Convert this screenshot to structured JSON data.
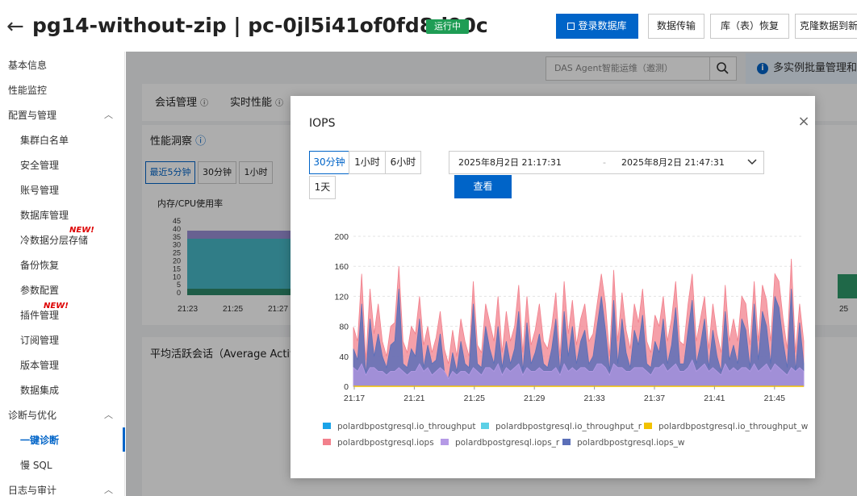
{
  "header": {
    "back_icon": "←",
    "title": "pg14-without-zip | pc-0jl5i41of0fd8d90c",
    "status": "运行中",
    "buttons": {
      "login_db": "登录数据库",
      "data_transfer": "数据传输",
      "restore": "库（表）恢复",
      "clone": "克隆数据到新"
    }
  },
  "sidebar": {
    "basic_info": "基本信息",
    "perf_monitor": "性能监控",
    "config_section": "配置与管理",
    "whitelist": "集群白名单",
    "security": "安全管理",
    "accounts": "账号管理",
    "databases": "数据库管理",
    "cold_storage": "冷数据分层存储",
    "backup": "备份恢复",
    "params": "参数配置",
    "plugins": "插件管理",
    "subscriptions": "订阅管理",
    "versions": "版本管理",
    "integration": "数据集成",
    "diag_section": "诊断与优化",
    "one_click": "一键诊断",
    "slow_sql": "慢 SQL",
    "log_section": "日志与审计",
    "new_badge": "NEW!"
  },
  "background": {
    "das_placeholder": "DAS Agent智能运维（邀测）",
    "info_text": "多实例批量管理和",
    "tab_sessions": "会话管理",
    "tab_realtime": "实时性能",
    "perf_insight": "性能洞察",
    "btn_5min": "最近5分钟",
    "btn_30min": "30分钟",
    "btn_1h": "1小时",
    "mem_cpu": "内存/CPU使用率",
    "yticks": [
      "45",
      "40",
      "35",
      "30",
      "25",
      "20",
      "15",
      "10",
      "5",
      "0"
    ],
    "xticks": [
      "21:23",
      "21:25",
      "21:27"
    ],
    "right_xtick": "25",
    "avg_session": "平均活跃会话（Average Active"
  },
  "modal": {
    "title": "IOPS",
    "close": "×",
    "range_30min": "30分钟",
    "range_1h": "1小时",
    "range_6h": "6小时",
    "range_1d": "1天",
    "start_time": "2025年8月2日 21:17:31",
    "dash": "-",
    "end_time": "2025年8月2日 21:47:31",
    "query": "查看"
  },
  "chart_data": {
    "type": "area",
    "y_range": [
      0,
      200
    ],
    "y_ticks": [
      "200",
      "160",
      "120",
      "80",
      "40",
      "0"
    ],
    "x_ticks": [
      "21:17",
      "21:21",
      "21:25",
      "21:29",
      "21:33",
      "21:37",
      "21:41",
      "21:45"
    ],
    "series": [
      {
        "name": "polardbpostgresql.io_throughput",
        "color": "#1aa3e8"
      },
      {
        "name": "polardbpostgresql.io_throughput_r",
        "color": "#5bd0e6"
      },
      {
        "name": "polardbpostgresql.io_throughput_w",
        "color": "#f2c200"
      },
      {
        "name": "polardbpostgresql.iops",
        "color": "#f2808c"
      },
      {
        "name": "polardbpostgresql.iops_r",
        "color": "#b59ae6"
      },
      {
        "name": "polardbpostgresql.iops_w",
        "color": "#5b6fb8"
      }
    ],
    "iops": [
      79,
      60,
      150,
      35,
      130,
      70,
      110,
      60,
      40,
      80,
      85,
      160,
      60,
      45,
      80,
      70,
      120,
      55,
      80,
      45,
      65,
      100,
      50,
      30,
      75,
      40,
      90,
      60,
      40,
      140,
      55,
      45,
      110,
      85,
      60,
      120,
      45,
      100,
      60,
      80,
      135,
      45,
      120,
      55,
      75,
      110,
      60,
      50,
      80,
      125,
      40,
      140,
      70,
      115,
      55,
      90,
      110,
      60,
      70,
      110,
      150,
      110,
      40,
      155,
      60,
      125,
      75,
      50,
      110,
      85,
      130,
      60,
      45,
      95,
      80,
      120,
      60,
      90,
      140,
      60,
      55,
      110,
      150,
      60,
      90,
      120,
      50,
      110,
      70,
      45,
      135,
      60,
      90,
      60,
      120,
      110,
      55,
      140,
      60,
      135,
      115,
      60,
      150,
      140,
      90,
      50,
      170,
      45,
      110,
      60
    ],
    "iops_w": [
      50,
      35,
      110,
      15,
      90,
      40,
      70,
      40,
      25,
      55,
      60,
      130,
      30,
      25,
      50,
      40,
      90,
      25,
      55,
      30,
      35,
      70,
      20,
      10,
      45,
      20,
      60,
      30,
      25,
      110,
      30,
      25,
      80,
      50,
      30,
      80,
      25,
      60,
      30,
      50,
      100,
      20,
      85,
      30,
      45,
      70,
      30,
      25,
      50,
      90,
      20,
      100,
      40,
      80,
      30,
      60,
      75,
      30,
      40,
      80,
      120,
      75,
      20,
      115,
      30,
      90,
      45,
      25,
      75,
      55,
      95,
      30,
      25,
      60,
      45,
      90,
      30,
      55,
      105,
      30,
      30,
      75,
      115,
      30,
      55,
      90,
      25,
      75,
      40,
      20,
      100,
      35,
      55,
      30,
      90,
      75,
      25,
      110,
      35,
      100,
      80,
      30,
      120,
      105,
      60,
      25,
      130,
      20,
      85,
      30
    ],
    "iops_r": [
      25,
      20,
      30,
      15,
      25,
      25,
      20,
      20,
      15,
      20,
      20,
      25,
      20,
      15,
      20,
      20,
      30,
      20,
      25,
      15,
      20,
      25,
      20,
      10,
      20,
      15,
      20,
      20,
      15,
      25,
      20,
      15,
      25,
      25,
      20,
      30,
      15,
      25,
      20,
      25,
      30,
      15,
      25,
      20,
      20,
      25,
      20,
      20,
      20,
      25,
      15,
      30,
      20,
      25,
      20,
      25,
      25,
      20,
      20,
      30,
      30,
      25,
      15,
      30,
      25,
      25,
      20,
      20,
      25,
      25,
      25,
      20,
      15,
      25,
      25,
      30,
      20,
      25,
      30,
      20,
      20,
      25,
      35,
      20,
      25,
      30,
      20,
      25,
      20,
      15,
      30,
      20,
      25,
      20,
      25,
      25,
      20,
      30,
      20,
      25,
      30,
      20,
      30,
      25,
      20,
      15,
      25,
      20,
      25,
      20
    ]
  }
}
